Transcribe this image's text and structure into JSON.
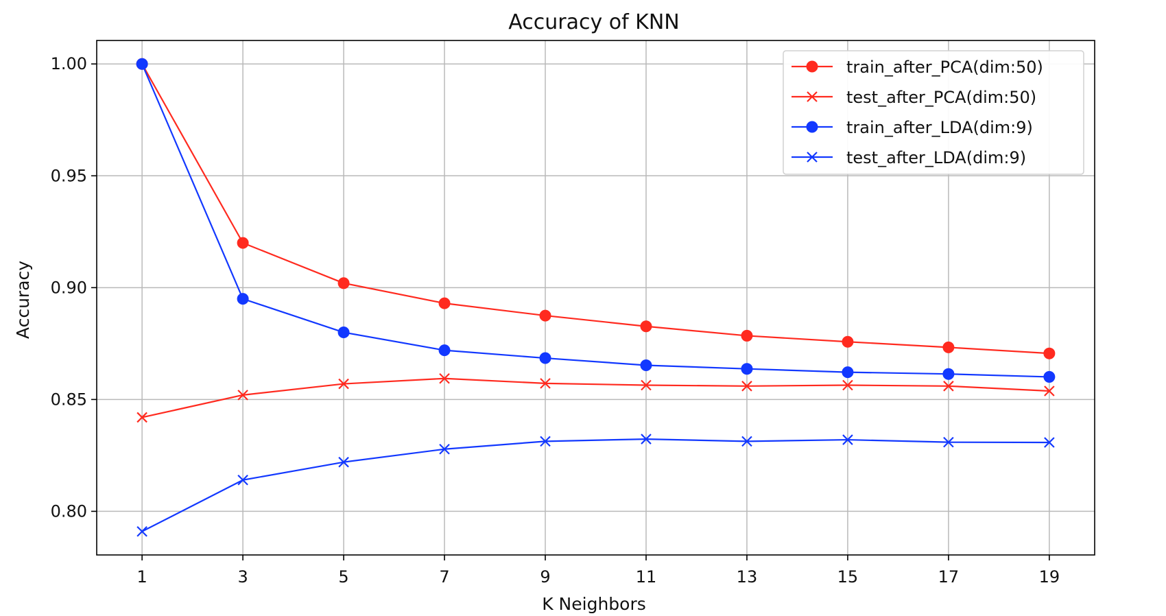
{
  "chart_data": {
    "type": "line",
    "title": "Accuracy of KNN",
    "xlabel": "K Neighbors",
    "ylabel": "Accuracy",
    "x": [
      1,
      3,
      5,
      7,
      9,
      11,
      13,
      15,
      17,
      19
    ],
    "x_tick_labels": [
      "1",
      "3",
      "5",
      "7",
      "9",
      "11",
      "13",
      "15",
      "17",
      "19"
    ],
    "y_ticks": [
      0.8,
      0.85,
      0.9,
      0.95,
      1.0
    ],
    "y_tick_labels": [
      "0.80",
      "0.85",
      "0.90",
      "0.95",
      "1.00"
    ],
    "xlim": [
      0.1,
      19.9
    ],
    "ylim": [
      0.7805,
      1.0105
    ],
    "grid": true,
    "legend_position": "top-right",
    "series": [
      {
        "name": "train_after_PCA(dim:50)",
        "color": "#ff2a1f",
        "marker": "circle",
        "values": [
          1.0,
          0.92,
          0.902,
          0.893,
          0.8875,
          0.8827,
          0.8785,
          0.8758,
          0.8733,
          0.8706
        ]
      },
      {
        "name": "test_after_PCA(dim:50)",
        "color": "#ff2a1f",
        "marker": "x",
        "values": [
          0.842,
          0.852,
          0.857,
          0.8594,
          0.8572,
          0.8564,
          0.856,
          0.8564,
          0.856,
          0.8538
        ]
      },
      {
        "name": "train_after_LDA(dim:9)",
        "color": "#1238ff",
        "marker": "circle",
        "values": [
          1.0,
          0.895,
          0.88,
          0.872,
          0.8685,
          0.8653,
          0.8637,
          0.8622,
          0.8614,
          0.8601
        ]
      },
      {
        "name": "test_after_LDA(dim:9)",
        "color": "#1238ff",
        "marker": "x",
        "values": [
          0.791,
          0.814,
          0.822,
          0.8278,
          0.8313,
          0.8323,
          0.8313,
          0.832,
          0.8309,
          0.8308
        ]
      }
    ]
  }
}
